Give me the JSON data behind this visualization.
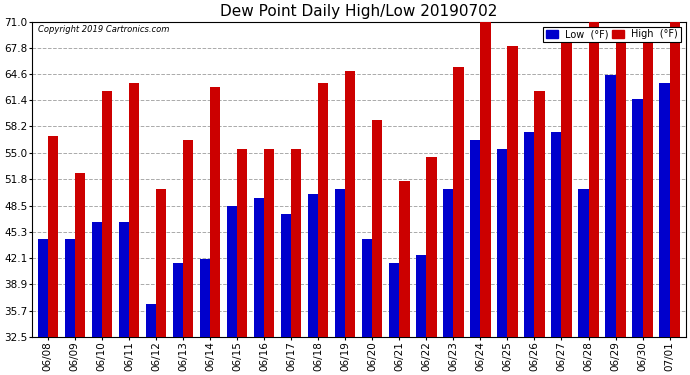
{
  "title": "Dew Point Daily High/Low 20190702",
  "copyright": "Copyright 2019 Cartronics.com",
  "dates": [
    "06/08",
    "06/09",
    "06/10",
    "06/11",
    "06/12",
    "06/13",
    "06/14",
    "06/15",
    "06/16",
    "06/17",
    "06/18",
    "06/19",
    "06/20",
    "06/21",
    "06/22",
    "06/23",
    "06/24",
    "06/25",
    "06/26",
    "06/27",
    "06/28",
    "06/29",
    "06/30",
    "07/01"
  ],
  "low_values": [
    44.5,
    44.5,
    46.5,
    46.5,
    36.5,
    41.5,
    42.0,
    48.5,
    49.5,
    47.5,
    50.0,
    50.5,
    44.5,
    41.5,
    42.5,
    50.5,
    56.5,
    55.5,
    57.5,
    57.5,
    50.5,
    64.5,
    61.5,
    63.5
  ],
  "high_values": [
    57.0,
    52.5,
    62.5,
    63.5,
    50.5,
    56.5,
    63.0,
    55.5,
    55.5,
    55.5,
    63.5,
    65.0,
    59.0,
    51.5,
    54.5,
    65.5,
    71.5,
    68.0,
    62.5,
    68.5,
    71.5,
    69.5,
    69.5,
    71.5
  ],
  "low_color": "#0000cc",
  "high_color": "#cc0000",
  "background_color": "#ffffff",
  "grid_color": "#aaaaaa",
  "ymin": 32.5,
  "ymax": 71.0,
  "yticks": [
    32.5,
    35.7,
    38.9,
    42.1,
    45.3,
    48.5,
    51.8,
    55.0,
    58.2,
    61.4,
    64.6,
    67.8,
    71.0
  ],
  "title_fontsize": 11,
  "tick_fontsize": 7.5,
  "bar_width": 0.38,
  "legend_fontsize": 7
}
